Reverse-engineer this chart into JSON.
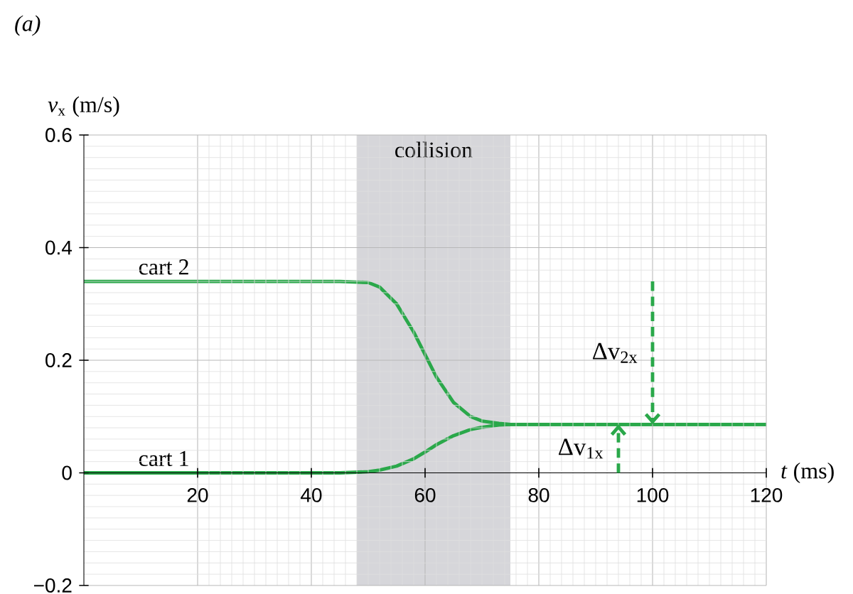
{
  "chart_data": {
    "type": "line",
    "xlabel": "*t* (ms)",
    "ylabel": "*v*$_{x}$ (m/s)",
    "x": [
      0,
      45,
      50,
      52,
      55,
      58,
      60,
      62,
      65,
      68,
      70,
      73,
      75,
      80,
      94,
      100,
      120
    ],
    "series": [
      {
        "name": "cart 2",
        "color": "#2aa84a",
        "values": [
          0.34,
          0.34,
          0.338,
          0.33,
          0.3,
          0.25,
          0.21,
          0.17,
          0.125,
          0.1,
          0.092,
          0.088,
          0.086,
          0.086,
          0.086,
          0.086,
          0.086
        ]
      },
      {
        "name": "cart 1",
        "color": "#2aa84a",
        "values": [
          0,
          0,
          0.002,
          0.005,
          0.012,
          0.025,
          0.037,
          0.05,
          0.066,
          0.077,
          0.081,
          0.085,
          0.086,
          0.086,
          0.086,
          0.086,
          0.086
        ]
      }
    ],
    "xlim": [
      0,
      120
    ],
    "ylim": [
      -0.2,
      0.6
    ],
    "xticks": [
      20,
      40,
      60,
      80,
      100,
      120
    ],
    "yticks": [
      {
        "value": -0.2,
        "label": "−0.2"
      },
      0,
      0.2,
      0.4,
      0.6
    ],
    "grid": true,
    "marker": "none",
    "line_style": "solid",
    "bands": [
      {
        "axis": "x",
        "from": 48,
        "to": 75,
        "label": "collision",
        "color": "#d6d6da"
      }
    ],
    "annotations": [
      "*(a)*",
      "Δv$_{2x}$",
      "Δv$_{1x}$"
    ]
  }
}
